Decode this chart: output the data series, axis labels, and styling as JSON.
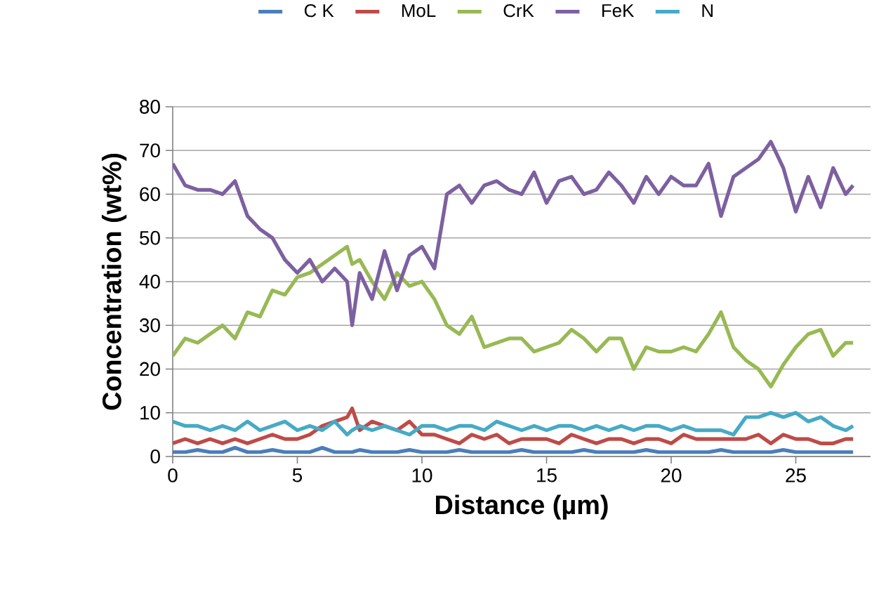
{
  "chart_data": {
    "type": "line",
    "xlabel": "Distance (µm)",
    "ylabel": "Concentration (wt%)",
    "xlim": [
      0,
      28
    ],
    "ylim": [
      0,
      80
    ],
    "xticks": [
      0,
      5,
      10,
      15,
      20,
      25
    ],
    "yticks": [
      0,
      10,
      20,
      30,
      40,
      50,
      60,
      70,
      80
    ],
    "grid": "y",
    "legend": "top",
    "line_style": "solid",
    "marker": "none",
    "x": [
      0,
      0.5,
      1,
      1.5,
      2,
      2.5,
      3,
      3.5,
      4,
      4.5,
      5,
      5.5,
      6,
      6.5,
      7,
      7.2,
      7.5,
      8,
      8.5,
      9,
      9.5,
      10,
      10.5,
      11,
      11.5,
      12,
      12.5,
      13,
      13.5,
      14,
      14.5,
      15,
      15.5,
      16,
      16.5,
      17,
      17.5,
      18,
      18.5,
      19,
      19.5,
      20,
      20.5,
      21,
      21.5,
      22,
      22.5,
      23,
      23.5,
      24,
      24.5,
      25,
      25.5,
      26,
      26.5,
      27,
      27.3
    ],
    "series": [
      {
        "name": "C K",
        "color": "#4a7ebb",
        "values": [
          1,
          1,
          1.5,
          1,
          1,
          2,
          1,
          1,
          1.5,
          1,
          1,
          1,
          2,
          1,
          1,
          1,
          1.5,
          1,
          1,
          1,
          1.5,
          1,
          1,
          1,
          1.5,
          1,
          1,
          1,
          1,
          1.5,
          1,
          1,
          1,
          1,
          1.5,
          1,
          1,
          1,
          1,
          1.5,
          1,
          1,
          1,
          1,
          1,
          1.5,
          1,
          1,
          1,
          1,
          1.5,
          1,
          1,
          1,
          1,
          1,
          1
        ]
      },
      {
        "name": "MoL",
        "color": "#be4b48",
        "values": [
          3,
          4,
          3,
          4,
          3,
          4,
          3,
          4,
          5,
          4,
          4,
          5,
          7,
          8,
          9,
          11,
          6,
          8,
          7,
          6,
          8,
          5,
          5,
          4,
          3,
          5,
          4,
          5,
          3,
          4,
          4,
          4,
          3,
          5,
          4,
          3,
          4,
          4,
          3,
          4,
          4,
          3,
          5,
          4,
          4,
          4,
          4,
          4,
          5,
          3,
          5,
          4,
          4,
          3,
          3,
          4,
          4
        ]
      },
      {
        "name": "CrK",
        "color": "#98b954",
        "values": [
          23,
          27,
          26,
          28,
          30,
          27,
          33,
          32,
          38,
          37,
          41,
          42,
          44,
          46,
          48,
          44,
          45,
          40,
          36,
          42,
          39,
          40,
          36,
          30,
          28,
          32,
          25,
          26,
          27,
          27,
          24,
          25,
          26,
          29,
          27,
          24,
          27,
          27,
          20,
          25,
          24,
          24,
          25,
          24,
          28,
          33,
          25,
          22,
          20,
          16,
          21,
          25,
          28,
          29,
          23,
          26,
          26
        ]
      },
      {
        "name": "FeK",
        "color": "#7d60a0",
        "values": [
          67,
          62,
          61,
          61,
          60,
          63,
          55,
          52,
          50,
          45,
          42,
          45,
          40,
          43,
          40,
          30,
          42,
          36,
          47,
          38,
          46,
          48,
          43,
          60,
          62,
          58,
          62,
          63,
          61,
          60,
          65,
          58,
          63,
          64,
          60,
          61,
          65,
          62,
          58,
          64,
          60,
          64,
          62,
          62,
          67,
          55,
          64,
          66,
          68,
          72,
          66,
          56,
          64,
          57,
          66,
          60,
          62
        ]
      },
      {
        "name": "N",
        "color": "#46aac5",
        "values": [
          8,
          7,
          7,
          6,
          7,
          6,
          8,
          6,
          7,
          8,
          6,
          7,
          6,
          8,
          5,
          6,
          7,
          6,
          7,
          6,
          5,
          7,
          7,
          6,
          7,
          7,
          6,
          8,
          7,
          6,
          7,
          6,
          7,
          7,
          6,
          7,
          6,
          7,
          6,
          7,
          7,
          6,
          7,
          6,
          6,
          6,
          5,
          9,
          9,
          10,
          9,
          10,
          8,
          9,
          7,
          6,
          7
        ]
      }
    ]
  }
}
